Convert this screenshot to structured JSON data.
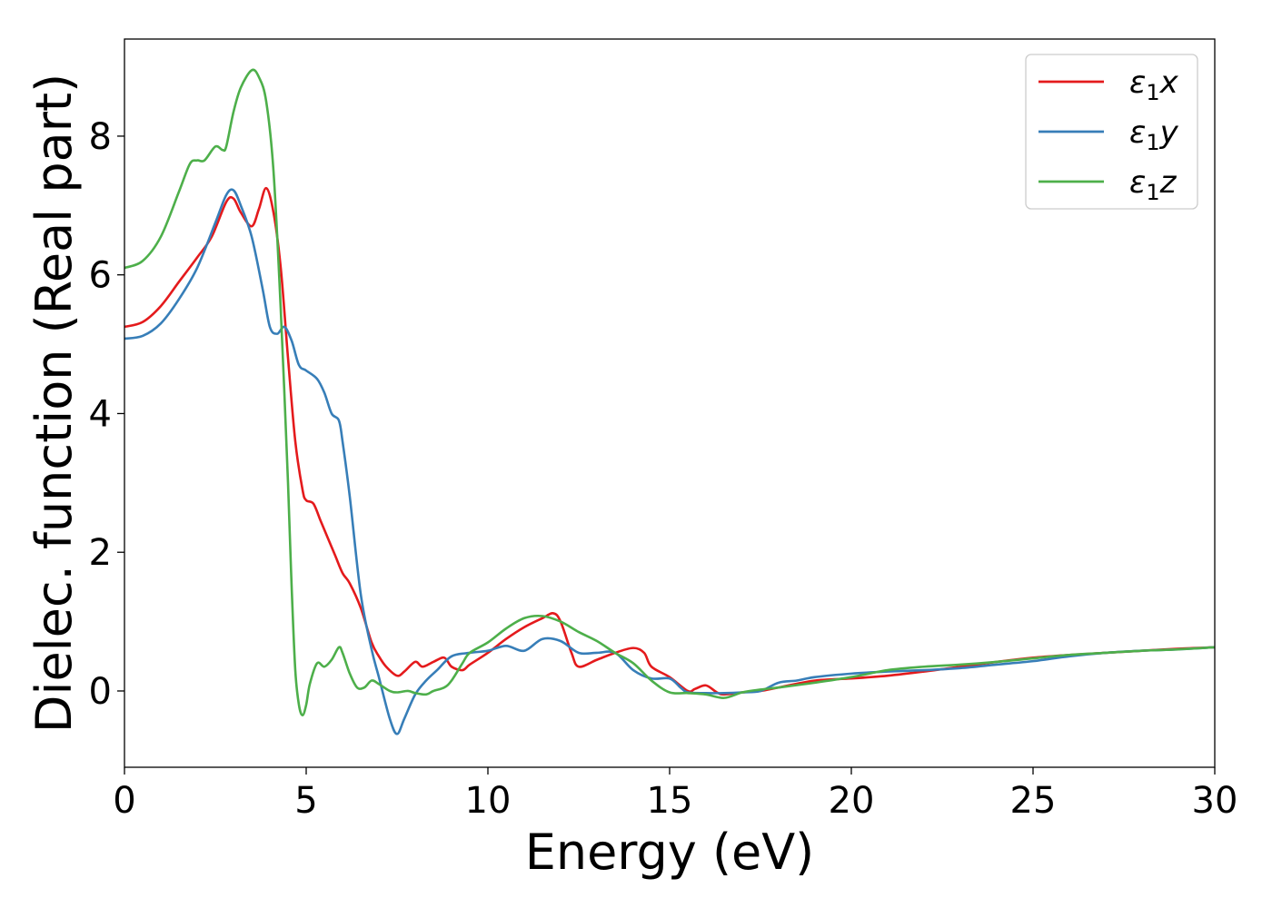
{
  "chart_data": {
    "type": "line",
    "title": "",
    "xlabel": "Energy (eV)",
    "ylabel": "Dielec. function (Real part)",
    "xlim": [
      0,
      30
    ],
    "ylim": [
      -1.1,
      9.4
    ],
    "xticks": [
      0,
      5,
      10,
      15,
      20,
      25,
      30
    ],
    "yticks": [
      0,
      2,
      4,
      6,
      8
    ],
    "xtick_labels": [
      "0",
      "5",
      "10",
      "15",
      "20",
      "25",
      "30"
    ],
    "ytick_labels": [
      "0",
      "2",
      "4",
      "6",
      "8"
    ],
    "grid": false,
    "legend_position": "top-right",
    "series": [
      {
        "name": "ε1x",
        "legend": {
          "base": "ε",
          "sub": "1",
          "var": "x"
        },
        "color": "#e41a1c",
        "x": [
          0,
          0.5,
          1.0,
          1.5,
          2.0,
          2.4,
          2.8,
          3.0,
          3.2,
          3.5,
          3.7,
          3.9,
          4.1,
          4.3,
          4.5,
          4.7,
          4.9,
          5.0,
          5.2,
          5.4,
          5.6,
          5.8,
          6.0,
          6.2,
          6.5,
          6.8,
          7.0,
          7.2,
          7.5,
          7.7,
          8.0,
          8.2,
          8.5,
          8.8,
          9.0,
          9.3,
          9.5,
          10.0,
          10.5,
          11.0,
          11.5,
          11.8,
          12.0,
          12.3,
          12.5,
          13.0,
          13.5,
          14.0,
          14.3,
          14.5,
          15.0,
          15.5,
          15.7,
          16.0,
          16.3,
          16.5,
          17.0,
          17.5,
          18.0,
          19.0,
          20.0,
          21.0,
          22.0,
          23.0,
          24.0,
          25.0,
          26.0,
          27.0,
          28.0,
          29.0,
          30.0
        ],
        "y": [
          5.25,
          5.32,
          5.55,
          5.9,
          6.25,
          6.55,
          7.05,
          7.1,
          6.9,
          6.7,
          6.95,
          7.25,
          6.9,
          6.1,
          4.8,
          3.6,
          2.9,
          2.75,
          2.7,
          2.45,
          2.2,
          1.95,
          1.7,
          1.55,
          1.2,
          0.7,
          0.5,
          0.35,
          0.22,
          0.28,
          0.42,
          0.35,
          0.42,
          0.48,
          0.35,
          0.3,
          0.38,
          0.55,
          0.75,
          0.92,
          1.05,
          1.12,
          1.0,
          0.55,
          0.35,
          0.45,
          0.55,
          0.62,
          0.55,
          0.35,
          0.2,
          0.0,
          0.03,
          0.08,
          -0.02,
          -0.05,
          -0.02,
          0.0,
          0.05,
          0.15,
          0.18,
          0.22,
          0.28,
          0.35,
          0.42,
          0.48,
          0.52,
          0.55,
          0.58,
          0.61,
          0.63
        ]
      },
      {
        "name": "ε1y",
        "legend": {
          "base": "ε",
          "sub": "1",
          "var": "y"
        },
        "color": "#377eb8",
        "x": [
          0,
          0.5,
          1.0,
          1.5,
          2.0,
          2.5,
          2.8,
          3.0,
          3.2,
          3.5,
          3.8,
          4.0,
          4.2,
          4.4,
          4.6,
          4.8,
          5.0,
          5.3,
          5.5,
          5.7,
          5.9,
          6.0,
          6.2,
          6.5,
          6.8,
          7.0,
          7.3,
          7.5,
          7.7,
          8.0,
          8.3,
          8.6,
          9.0,
          9.5,
          10.0,
          10.5,
          11.0,
          11.5,
          12.0,
          12.5,
          13.0,
          13.5,
          14.0,
          14.5,
          15.0,
          15.3,
          15.5,
          16.0,
          16.5,
          17.0,
          17.5,
          18.0,
          18.5,
          19.0,
          20.0,
          21.0,
          22.0,
          23.0,
          24.0,
          25.0,
          26.0,
          27.0,
          28.0,
          29.0,
          30.0
        ],
        "y": [
          5.08,
          5.12,
          5.3,
          5.65,
          6.1,
          6.75,
          7.15,
          7.22,
          7.0,
          6.55,
          5.8,
          5.25,
          5.15,
          5.25,
          5.05,
          4.7,
          4.62,
          4.5,
          4.3,
          4.0,
          3.9,
          3.6,
          2.8,
          1.4,
          0.6,
          0.2,
          -0.4,
          -0.62,
          -0.4,
          -0.05,
          0.15,
          0.3,
          0.5,
          0.55,
          0.58,
          0.65,
          0.58,
          0.75,
          0.72,
          0.55,
          0.55,
          0.55,
          0.3,
          0.18,
          0.18,
          0.05,
          -0.02,
          -0.03,
          -0.03,
          -0.02,
          0.0,
          0.12,
          0.15,
          0.2,
          0.25,
          0.28,
          0.3,
          0.33,
          0.38,
          0.43,
          0.5,
          0.55,
          0.58,
          0.6,
          0.63
        ]
      },
      {
        "name": "ε1z",
        "legend": {
          "base": "ε",
          "sub": "1",
          "var": "z"
        },
        "color": "#4daf4a",
        "x": [
          0,
          0.5,
          1.0,
          1.5,
          1.8,
          2.0,
          2.2,
          2.5,
          2.7,
          2.8,
          3.0,
          3.2,
          3.5,
          3.7,
          3.9,
          4.1,
          4.3,
          4.5,
          4.6,
          4.7,
          4.8,
          4.9,
          5.0,
          5.1,
          5.3,
          5.5,
          5.7,
          5.9,
          6.0,
          6.2,
          6.4,
          6.6,
          6.8,
          7.0,
          7.3,
          7.5,
          7.8,
          8.0,
          8.3,
          8.5,
          8.8,
          9.0,
          9.3,
          9.5,
          10.0,
          10.5,
          11.0,
          11.5,
          12.0,
          12.5,
          13.0,
          13.5,
          14.0,
          14.5,
          15.0,
          15.5,
          16.0,
          16.5,
          17.0,
          17.5,
          18.0,
          19.0,
          20.0,
          21.0,
          22.0,
          23.0,
          24.0,
          25.0,
          26.0,
          27.0,
          28.0,
          29.0,
          30.0
        ],
        "y": [
          6.1,
          6.2,
          6.55,
          7.2,
          7.6,
          7.65,
          7.65,
          7.85,
          7.8,
          7.85,
          8.35,
          8.7,
          8.95,
          8.85,
          8.5,
          7.5,
          5.5,
          3.0,
          1.5,
          0.3,
          -0.2,
          -0.35,
          -0.2,
          0.1,
          0.4,
          0.35,
          0.45,
          0.63,
          0.55,
          0.25,
          0.05,
          0.05,
          0.15,
          0.1,
          0.0,
          -0.02,
          0.0,
          -0.03,
          -0.05,
          0.0,
          0.05,
          0.15,
          0.4,
          0.55,
          0.7,
          0.9,
          1.05,
          1.08,
          1.0,
          0.85,
          0.72,
          0.55,
          0.4,
          0.15,
          -0.02,
          -0.03,
          -0.05,
          -0.1,
          -0.02,
          0.02,
          0.05,
          0.12,
          0.2,
          0.3,
          0.35,
          0.38,
          0.42,
          0.47,
          0.52,
          0.55,
          0.58,
          0.6,
          0.63
        ]
      }
    ]
  }
}
